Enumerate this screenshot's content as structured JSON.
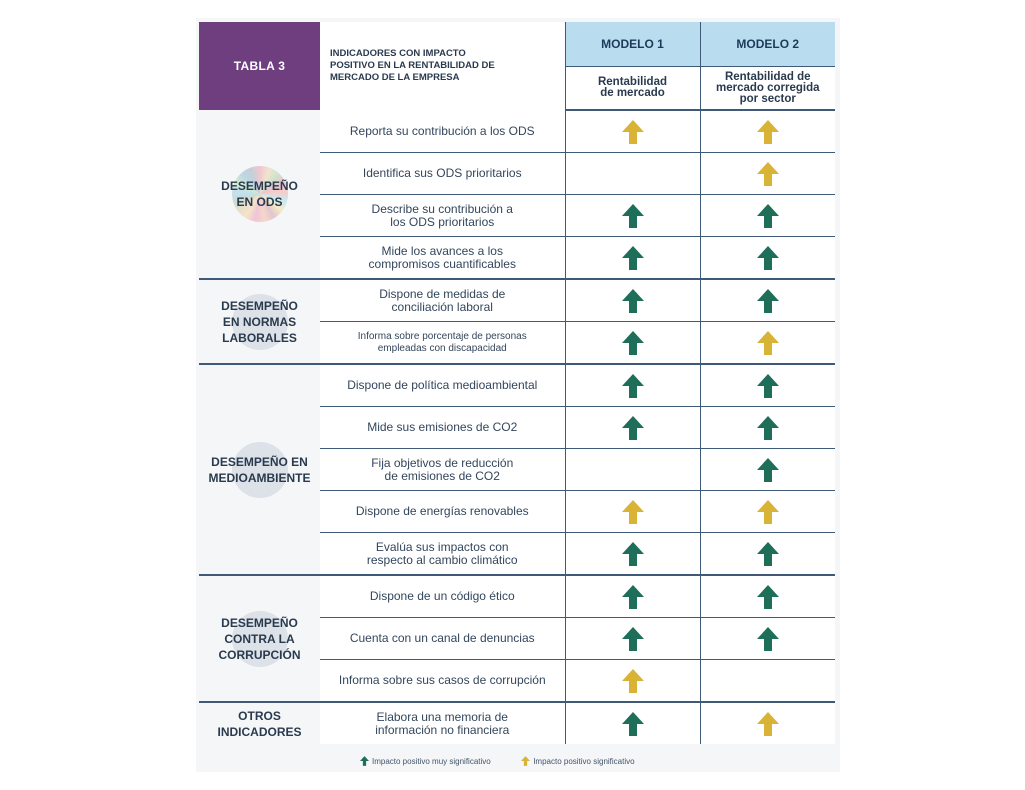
{
  "header": {
    "tabla": "TABLA 3",
    "indicadores_title": [
      "INDICADORES CON IMPACTO",
      "POSITIVO EN LA RENTABILIDAD DE",
      "MERCADO DE LA EMPRESA"
    ],
    "modelo1": "MODELO 1",
    "modelo2": "MODELO 2",
    "modelo1_sub": [
      "Rentabilidad",
      "de mercado"
    ],
    "modelo2_sub": [
      "Rentabilidad de",
      "mercado corregida",
      "por sector"
    ]
  },
  "colors": {
    "green": "#1f6e5a",
    "yellow": "#d8b335",
    "purple": "#6e3e7e",
    "header_blue": "#b9dcee",
    "line": "#3e5a78"
  },
  "sections": [
    {
      "name": [
        "DESEMPEÑO",
        "EN ODS"
      ],
      "watermark": "ods-wheel-icon",
      "rows": [
        {
          "label": [
            "Reporta su contribución a los ODS"
          ],
          "m1": "yellow",
          "m2": "yellow"
        },
        {
          "label": [
            "Identifica sus ODS prioritarios"
          ],
          "m1": "",
          "m2": "yellow"
        },
        {
          "label": [
            "Describe su contribución a",
            "los ODS prioritarios"
          ],
          "m1": "green",
          "m2": "green"
        },
        {
          "label": [
            "Mide los avances a los",
            "compromisos cuantificables"
          ],
          "m1": "green",
          "m2": "green"
        }
      ]
    },
    {
      "name": [
        "DESEMPEÑO",
        "EN NORMAS",
        "LABORALES"
      ],
      "watermark": "people-icon",
      "rows": [
        {
          "label": [
            "Dispone de medidas de",
            "conciliación laboral"
          ],
          "m1": "green",
          "m2": "green"
        },
        {
          "label": [
            "Informa sobre porcentaje de personas",
            "empleadas con discapacidad"
          ],
          "small": true,
          "m1": "green",
          "m2": "yellow"
        }
      ]
    },
    {
      "name": [
        "DESEMPEÑO EN",
        "MEDIOAMBIENTE"
      ],
      "watermark": "factory-icon",
      "rows": [
        {
          "label": [
            "Dispone de política medioambiental"
          ],
          "m1": "green",
          "m2": "green"
        },
        {
          "label": [
            "Mide sus emisiones de CO2"
          ],
          "m1": "green",
          "m2": "green"
        },
        {
          "label": [
            "Fija objetivos de reducción",
            "de emisiones de CO2"
          ],
          "m1": "",
          "m2": "green"
        },
        {
          "label": [
            "Dispone de energías renovables"
          ],
          "m1": "yellow",
          "m2": "yellow"
        },
        {
          "label": [
            "Evalúa sus impactos con",
            "respecto al cambio climático"
          ],
          "m1": "green",
          "m2": "green"
        }
      ]
    },
    {
      "name": [
        "DESEMPEÑO",
        "CONTRA LA",
        "CORRUPCIÓN"
      ],
      "watermark": "scales-icon",
      "rows": [
        {
          "label": [
            "Dispone de un código ético"
          ],
          "m1": "green",
          "m2": "green"
        },
        {
          "label": [
            "Cuenta con un canal de denuncias"
          ],
          "m1": "green",
          "m2": "green"
        },
        {
          "label": [
            "Informa sobre sus casos de corrupción"
          ],
          "m1": "yellow",
          "m2": ""
        }
      ]
    },
    {
      "name": [
        "OTROS",
        "INDICADORES"
      ],
      "watermark": "",
      "rows": [
        {
          "label": [
            "Elabora una memoria de",
            "información no financiera"
          ],
          "m1": "green",
          "m2": "yellow"
        }
      ]
    }
  ],
  "legend": {
    "green_label": "Impacto positivo muy significativo",
    "yellow_label": "Impacto positivo significativo"
  }
}
